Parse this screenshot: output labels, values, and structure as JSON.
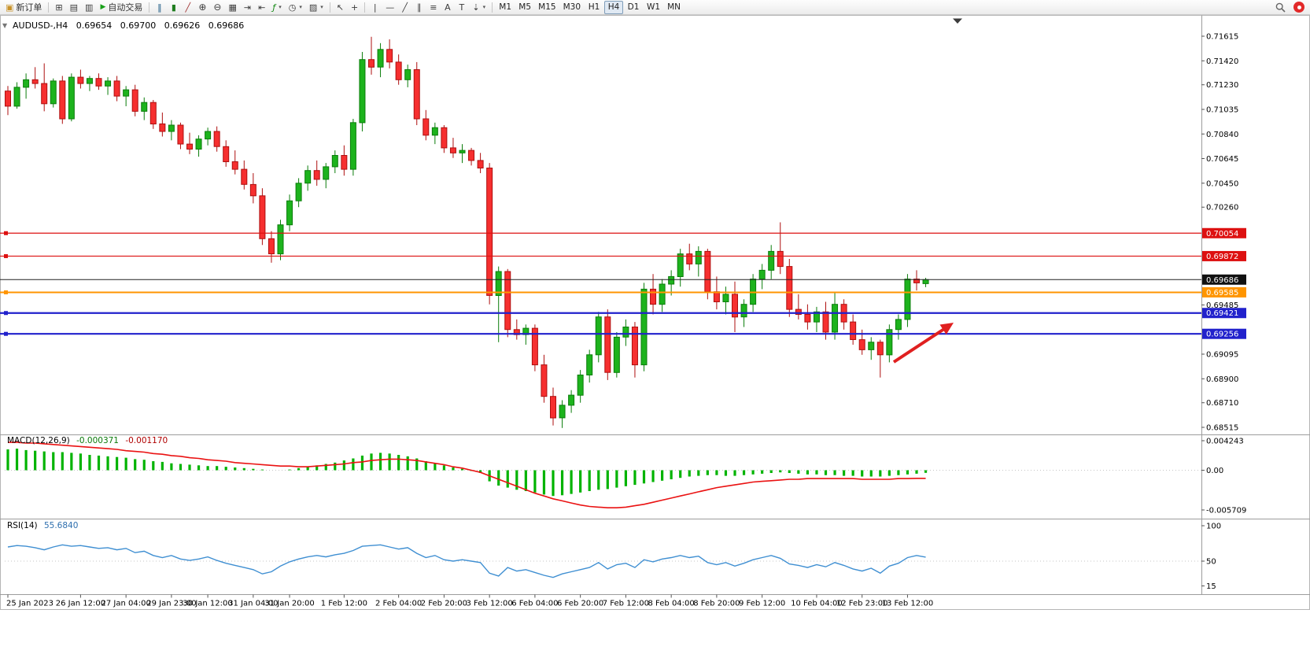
{
  "toolbar": {
    "new_order_label": "新订单",
    "auto_trading_label": "自动交易",
    "groups": {
      "file": [
        {
          "name": "new-chart",
          "glyph": "⊞"
        },
        {
          "name": "profiles",
          "glyph": "▤"
        },
        {
          "name": "data-window",
          "glyph": "▥"
        }
      ],
      "chart": [
        {
          "name": "bar-chart",
          "glyph": "‖"
        },
        {
          "name": "candlestick-chart",
          "glyph": "▮"
        },
        {
          "name": "line-chart",
          "glyph": "╱"
        },
        {
          "name": "zoom-in",
          "glyph": "⊕"
        },
        {
          "name": "zoom-out",
          "glyph": "⊖"
        },
        {
          "name": "tile-windows",
          "glyph": "▦"
        },
        {
          "name": "auto-scroll",
          "glyph": "⇥"
        },
        {
          "name": "chart-shift",
          "glyph": "⇤"
        },
        {
          "name": "indicators",
          "glyph": "ƒ",
          "caret": true
        },
        {
          "name": "periods",
          "glyph": "◷",
          "caret": true
        },
        {
          "name": "templates",
          "glyph": "▨",
          "caret": true
        }
      ],
      "cursor": [
        {
          "name": "cursor",
          "glyph": "↖"
        },
        {
          "name": "crosshair",
          "glyph": "+"
        }
      ],
      "objects": [
        {
          "name": "vertical-line",
          "glyph": "|"
        },
        {
          "name": "horizontal-line",
          "glyph": "—"
        },
        {
          "name": "trendline",
          "glyph": "╱"
        },
        {
          "name": "equidistant-channel",
          "glyph": "∥"
        },
        {
          "name": "fibonacci",
          "glyph": "≡"
        },
        {
          "name": "text",
          "glyph": "A"
        },
        {
          "name": "text-label",
          "glyph": "T"
        },
        {
          "name": "arrows",
          "glyph": "⇣",
          "caret": true
        }
      ]
    },
    "timeframes": [
      "M1",
      "M5",
      "M15",
      "M30",
      "H1",
      "H4",
      "D1",
      "W1",
      "MN"
    ],
    "active_timeframe": "H4"
  },
  "chart": {
    "title": "AUDUSD-,H4",
    "open": "0.69654",
    "high": "0.69700",
    "low": "0.69626",
    "close": "0.69686"
  },
  "price_axis": {
    "scale_prices": [
      0.71615,
      0.7142,
      0.7123,
      0.71035,
      0.7084,
      0.70645,
      0.7045,
      0.7026,
      0.69485,
      0.69095,
      0.689,
      0.6871,
      0.68515
    ],
    "badges": [
      {
        "price": 0.70054,
        "color": "#dd1111"
      },
      {
        "price": 0.69872,
        "color": "#dd1111"
      },
      {
        "price": 0.69686,
        "color": "#111111"
      },
      {
        "price": 0.69585,
        "color": "#ff9500"
      },
      {
        "price": 0.69421,
        "color": "#2121cc"
      },
      {
        "price": 0.69256,
        "color": "#2121cc"
      }
    ]
  },
  "lines": [
    {
      "name": "resistance-line-1",
      "price": 0.70054,
      "color": "#dd1111",
      "width": 1.2,
      "handle": true
    },
    {
      "name": "resistance-line-2",
      "price": 0.69872,
      "color": "#dd1111",
      "width": 1.2,
      "handle": true
    },
    {
      "name": "current-price-line",
      "price": 0.69686,
      "color": "#222222",
      "width": 1,
      "handle": false
    },
    {
      "name": "pivot-line",
      "price": 0.69585,
      "color": "#ff9500",
      "width": 2,
      "handle": true
    },
    {
      "name": "support-line-1",
      "price": 0.69421,
      "color": "#2121cc",
      "width": 2.2,
      "handle": true
    },
    {
      "name": "support-line-2",
      "price": 0.69256,
      "color": "#2121cc",
      "width": 2.2,
      "handle": true
    }
  ],
  "annotation_arrow": {
    "color": "#e02020"
  },
  "indicators": {
    "macd": {
      "label": "MACD(12,26,9)",
      "value1": "-0.000371",
      "value2": "-0.001170",
      "scale_labels": [
        "0.004243",
        "0.00",
        "-0.005709"
      ],
      "bar_color": "#00b300",
      "signal_color": "#ea1212"
    },
    "rsi": {
      "label": "RSI(14)",
      "value": "55.6840",
      "scale_labels": [
        "100",
        "50",
        "15"
      ],
      "line_color": "#3f8fd2"
    }
  },
  "chart_data": {
    "type": "candlestick",
    "symbol": "AUDUSD-",
    "timeframe": "H4",
    "bull_color": "#1db31d",
    "bear_color": "#f62f2f",
    "candles": [
      [
        0.7118,
        0.7122,
        0.7099,
        0.7106
      ],
      [
        0.7106,
        0.7125,
        0.7104,
        0.7121
      ],
      [
        0.7121,
        0.7132,
        0.7112,
        0.7127
      ],
      [
        0.7127,
        0.7137,
        0.712,
        0.7124
      ],
      [
        0.7124,
        0.714,
        0.7102,
        0.7108
      ],
      [
        0.7108,
        0.7128,
        0.7105,
        0.7126
      ],
      [
        0.7126,
        0.713,
        0.7092,
        0.7096
      ],
      [
        0.7096,
        0.7132,
        0.7094,
        0.7129
      ],
      [
        0.7129,
        0.7135,
        0.712,
        0.7124
      ],
      [
        0.7124,
        0.713,
        0.7118,
        0.7128
      ],
      [
        0.7128,
        0.7132,
        0.7119,
        0.7122
      ],
      [
        0.7122,
        0.7129,
        0.7115,
        0.7126
      ],
      [
        0.7126,
        0.713,
        0.711,
        0.7114
      ],
      [
        0.7114,
        0.7122,
        0.7106,
        0.7119
      ],
      [
        0.7119,
        0.7123,
        0.7098,
        0.7102
      ],
      [
        0.7102,
        0.7113,
        0.7095,
        0.7109
      ],
      [
        0.7109,
        0.7111,
        0.7088,
        0.7092
      ],
      [
        0.7092,
        0.7101,
        0.7082,
        0.7086
      ],
      [
        0.7086,
        0.7095,
        0.7079,
        0.7091
      ],
      [
        0.7091,
        0.7093,
        0.7072,
        0.7076
      ],
      [
        0.7076,
        0.7085,
        0.7068,
        0.7072
      ],
      [
        0.7072,
        0.7083,
        0.7066,
        0.708
      ],
      [
        0.708,
        0.7089,
        0.7075,
        0.7086
      ],
      [
        0.7086,
        0.709,
        0.707,
        0.7074
      ],
      [
        0.7074,
        0.7079,
        0.7058,
        0.7062
      ],
      [
        0.7062,
        0.7071,
        0.7052,
        0.7056
      ],
      [
        0.7056,
        0.7063,
        0.704,
        0.7044
      ],
      [
        0.7044,
        0.7053,
        0.7029,
        0.7035
      ],
      [
        0.7035,
        0.7041,
        0.6996,
        0.7001
      ],
      [
        0.7001,
        0.7007,
        0.6982,
        0.6989
      ],
      [
        0.6989,
        0.7016,
        0.6984,
        0.7012
      ],
      [
        0.7012,
        0.7036,
        0.7007,
        0.7031
      ],
      [
        0.7031,
        0.7049,
        0.7026,
        0.7045
      ],
      [
        0.7045,
        0.7059,
        0.7039,
        0.7055
      ],
      [
        0.7055,
        0.7063,
        0.7043,
        0.7048
      ],
      [
        0.7048,
        0.7061,
        0.7041,
        0.7058
      ],
      [
        0.7058,
        0.7071,
        0.7053,
        0.7067
      ],
      [
        0.7067,
        0.7075,
        0.7051,
        0.7056
      ],
      [
        0.7056,
        0.7096,
        0.7051,
        0.7093
      ],
      [
        0.7093,
        0.7149,
        0.7086,
        0.7143
      ],
      [
        0.7143,
        0.7161,
        0.7131,
        0.7137
      ],
      [
        0.7137,
        0.7156,
        0.7129,
        0.7151
      ],
      [
        0.7151,
        0.7159,
        0.7136,
        0.7141
      ],
      [
        0.7141,
        0.7147,
        0.7123,
        0.7127
      ],
      [
        0.7127,
        0.7139,
        0.7121,
        0.7135
      ],
      [
        0.7135,
        0.7141,
        0.7091,
        0.7096
      ],
      [
        0.7096,
        0.7103,
        0.7079,
        0.7083
      ],
      [
        0.7083,
        0.7093,
        0.7076,
        0.7089
      ],
      [
        0.7089,
        0.7091,
        0.7069,
        0.7073
      ],
      [
        0.7073,
        0.7081,
        0.7065,
        0.7069
      ],
      [
        0.7069,
        0.7076,
        0.7061,
        0.7071
      ],
      [
        0.7071,
        0.7073,
        0.7059,
        0.7063
      ],
      [
        0.7063,
        0.7069,
        0.7053,
        0.7057
      ],
      [
        0.7057,
        0.7061,
        0.6949,
        0.6956
      ],
      [
        0.6956,
        0.6979,
        0.6919,
        0.6975
      ],
      [
        0.6975,
        0.6977,
        0.6923,
        0.6929
      ],
      [
        0.6929,
        0.6937,
        0.6921,
        0.6925
      ],
      [
        0.6925,
        0.6933,
        0.6917,
        0.693
      ],
      [
        0.693,
        0.6933,
        0.6896,
        0.6901
      ],
      [
        0.6901,
        0.6909,
        0.6871,
        0.6876
      ],
      [
        0.6876,
        0.6883,
        0.6853,
        0.6859
      ],
      [
        0.6859,
        0.6873,
        0.6851,
        0.6869
      ],
      [
        0.6869,
        0.6881,
        0.6863,
        0.6877
      ],
      [
        0.6877,
        0.6897,
        0.6871,
        0.6893
      ],
      [
        0.6893,
        0.6913,
        0.6887,
        0.6909
      ],
      [
        0.6909,
        0.6943,
        0.6903,
        0.6939
      ],
      [
        0.6939,
        0.6945,
        0.6889,
        0.6895
      ],
      [
        0.6895,
        0.6927,
        0.6891,
        0.6923
      ],
      [
        0.6923,
        0.6937,
        0.6916,
        0.6931
      ],
      [
        0.6931,
        0.6935,
        0.6891,
        0.6901
      ],
      [
        0.6901,
        0.6966,
        0.6896,
        0.6961
      ],
      [
        0.6961,
        0.6973,
        0.6941,
        0.6949
      ],
      [
        0.6949,
        0.6969,
        0.6943,
        0.6965
      ],
      [
        0.6965,
        0.6976,
        0.6956,
        0.6971
      ],
      [
        0.6971,
        0.6993,
        0.6963,
        0.6989
      ],
      [
        0.6989,
        0.6997,
        0.6976,
        0.6981
      ],
      [
        0.6981,
        0.6995,
        0.6971,
        0.6991
      ],
      [
        0.6991,
        0.6993,
        0.6953,
        0.6959
      ],
      [
        0.6959,
        0.6971,
        0.6945,
        0.6951
      ],
      [
        0.6951,
        0.6963,
        0.6941,
        0.6957
      ],
      [
        0.6957,
        0.6967,
        0.6927,
        0.6939
      ],
      [
        0.6939,
        0.6953,
        0.6931,
        0.6949
      ],
      [
        0.6949,
        0.6973,
        0.6943,
        0.6969
      ],
      [
        0.6969,
        0.6981,
        0.6961,
        0.6976
      ],
      [
        0.6976,
        0.6996,
        0.6969,
        0.6991
      ],
      [
        0.6991,
        0.7014,
        0.6973,
        0.6979
      ],
      [
        0.6979,
        0.6985,
        0.6939,
        0.6945
      ],
      [
        0.6945,
        0.6957,
        0.6937,
        0.6941
      ],
      [
        0.6941,
        0.6949,
        0.6929,
        0.6935
      ],
      [
        0.6935,
        0.6947,
        0.6927,
        0.6943
      ],
      [
        0.6943,
        0.6951,
        0.6921,
        0.6927
      ],
      [
        0.6927,
        0.6959,
        0.6921,
        0.6949
      ],
      [
        0.6949,
        0.6953,
        0.6929,
        0.6935
      ],
      [
        0.6935,
        0.6941,
        0.6917,
        0.6921
      ],
      [
        0.6921,
        0.6929,
        0.6909,
        0.6913
      ],
      [
        0.6913,
        0.6923,
        0.6905,
        0.6919
      ],
      [
        0.6919,
        0.6921,
        0.6891,
        0.6909
      ],
      [
        0.6909,
        0.6933,
        0.6903,
        0.6929
      ],
      [
        0.6929,
        0.6941,
        0.6921,
        0.6937
      ],
      [
        0.6937,
        0.6973,
        0.6931,
        0.6969
      ],
      [
        0.6969,
        0.6976,
        0.696,
        0.6966
      ],
      [
        0.69654,
        0.697,
        0.69626,
        0.69686
      ]
    ],
    "indicators": {
      "macd": {
        "histogram": [
          0.003,
          0.0031,
          0.0029,
          0.0028,
          0.0027,
          0.0026,
          0.0026,
          0.0025,
          0.0024,
          0.0022,
          0.0021,
          0.002,
          0.0019,
          0.0018,
          0.0016,
          0.0015,
          0.0013,
          0.0012,
          0.001,
          0.0009,
          0.0008,
          0.0007,
          0.0006,
          0.0006,
          0.0005,
          0.0004,
          0.0003,
          0.0002,
          0.0001,
          0.0,
          0.0,
          0.0001,
          0.0003,
          0.0005,
          0.0007,
          0.0009,
          0.0011,
          0.0014,
          0.0017,
          0.0021,
          0.0024,
          0.0025,
          0.0024,
          0.0022,
          0.002,
          0.0017,
          0.0013,
          0.001,
          0.0007,
          0.0004,
          0.0002,
          -0.0001,
          -0.0004,
          -0.0016,
          -0.0022,
          -0.0025,
          -0.0028,
          -0.003,
          -0.0032,
          -0.0035,
          -0.0037,
          -0.0036,
          -0.0034,
          -0.0032,
          -0.003,
          -0.0028,
          -0.0027,
          -0.0025,
          -0.0023,
          -0.0021,
          -0.0019,
          -0.0017,
          -0.0015,
          -0.0013,
          -0.0011,
          -0.0009,
          -0.0008,
          -0.0007,
          -0.0007,
          -0.0008,
          -0.0008,
          -0.0007,
          -0.0006,
          -0.0005,
          -0.0004,
          -0.0003,
          -0.0004,
          -0.0005,
          -0.0006,
          -0.0006,
          -0.0007,
          -0.0007,
          -0.0008,
          -0.0008,
          -0.0009,
          -0.0009,
          -0.0009,
          -0.0008,
          -0.0007,
          -0.0006,
          -0.0005,
          -0.000371
        ],
        "signal": [
          0.004,
          0.004,
          0.0039,
          0.0039,
          0.0038,
          0.0037,
          0.0036,
          0.0035,
          0.0034,
          0.0033,
          0.0032,
          0.0031,
          0.003,
          0.0028,
          0.0027,
          0.0026,
          0.0024,
          0.0023,
          0.0021,
          0.002,
          0.0018,
          0.0017,
          0.0015,
          0.0014,
          0.0013,
          0.0011,
          0.001,
          0.0009,
          0.0008,
          0.0007,
          0.0006,
          0.0006,
          0.0005,
          0.0005,
          0.0006,
          0.0007,
          0.0008,
          0.0009,
          0.0011,
          0.0012,
          0.0014,
          0.0015,
          0.0016,
          0.0016,
          0.0015,
          0.0014,
          0.0012,
          0.001,
          0.0008,
          0.0005,
          0.0003,
          0.0,
          -0.0003,
          -0.0008,
          -0.0013,
          -0.0018,
          -0.0023,
          -0.0028,
          -0.0033,
          -0.0037,
          -0.0041,
          -0.0044,
          -0.0047,
          -0.005,
          -0.0052,
          -0.0053,
          -0.0054,
          -0.0054,
          -0.0053,
          -0.0051,
          -0.0049,
          -0.0046,
          -0.0043,
          -0.004,
          -0.0037,
          -0.0034,
          -0.0031,
          -0.0028,
          -0.0025,
          -0.0023,
          -0.0021,
          -0.0019,
          -0.0017,
          -0.0016,
          -0.0015,
          -0.0014,
          -0.0013,
          -0.0013,
          -0.0012,
          -0.0012,
          -0.0012,
          -0.0012,
          -0.0012,
          -0.0012,
          -0.0013,
          -0.0013,
          -0.0013,
          -0.0013,
          -0.0012,
          -0.0012,
          -0.00117,
          -0.00117
        ]
      },
      "rsi": {
        "values": [
          70,
          72,
          71,
          69,
          66,
          70,
          73,
          71,
          72,
          70,
          68,
          69,
          66,
          68,
          62,
          64,
          58,
          55,
          58,
          53,
          51,
          53,
          56,
          51,
          47,
          44,
          41,
          38,
          32,
          35,
          43,
          49,
          53,
          56,
          58,
          56,
          59,
          61,
          65,
          71,
          72,
          73,
          70,
          67,
          69,
          61,
          55,
          58,
          52,
          50,
          52,
          50,
          48,
          33,
          29,
          41,
          36,
          38,
          34,
          30,
          27,
          32,
          35,
          38,
          41,
          48,
          39,
          45,
          47,
          41,
          52,
          49,
          53,
          55,
          58,
          55,
          57,
          48,
          45,
          48,
          43,
          47,
          52,
          55,
          58,
          54,
          46,
          44,
          41,
          45,
          42,
          48,
          44,
          39,
          36,
          40,
          33,
          43,
          47,
          55,
          58,
          55.7
        ]
      }
    },
    "time_labels": [
      "25 Jan 2023",
      "26 Jan 12:00",
      "27 Jan 04:00",
      "29 Jan 23:00",
      "30 Jan 12:00",
      "31 Jan 04:00",
      "31 Jan 20:00",
      "1 Feb 12:00",
      "2 Feb 04:00",
      "2 Feb 20:00",
      "3 Feb 12:00",
      "6 Feb 04:00",
      "6 Feb 20:00",
      "7 Feb 12:00",
      "8 Feb 04:00",
      "8 Feb 20:00",
      "9 Feb 12:00",
      "10 Feb 04:00",
      "12 Feb 23:00",
      "13 Feb 12:00"
    ]
  }
}
